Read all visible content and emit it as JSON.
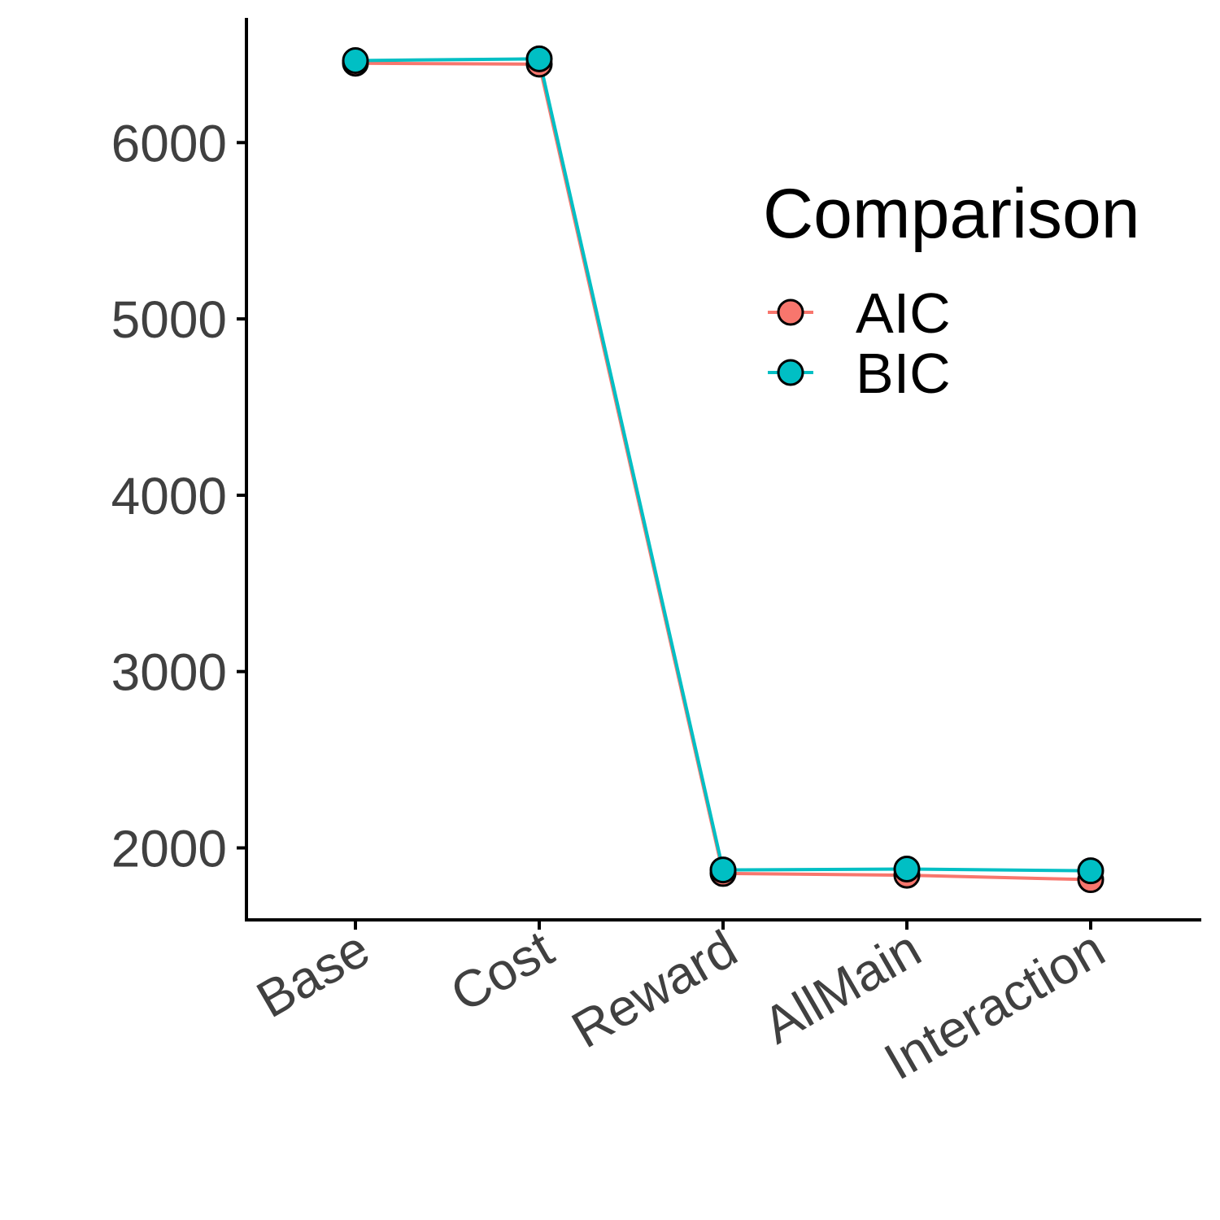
{
  "chart_data": {
    "type": "line",
    "title": "",
    "xlabel": "",
    "ylabel": "",
    "categories": [
      "Base",
      "Cost",
      "Reward",
      "AllMain",
      "Interaction"
    ],
    "ylim": [
      1600,
      6700
    ],
    "y_ticks": [
      "2000",
      "3000",
      "4000",
      "5000",
      "6000"
    ],
    "grid": false,
    "legend": {
      "title": "Comparison",
      "position": "right"
    },
    "series": [
      {
        "name": "AIC",
        "color": "#F8766D",
        "values": [
          6450,
          6445,
          1855,
          1845,
          1820
        ]
      },
      {
        "name": "BIC",
        "color": "#00BFC4",
        "values": [
          6465,
          6475,
          1875,
          1880,
          1870
        ]
      }
    ]
  }
}
